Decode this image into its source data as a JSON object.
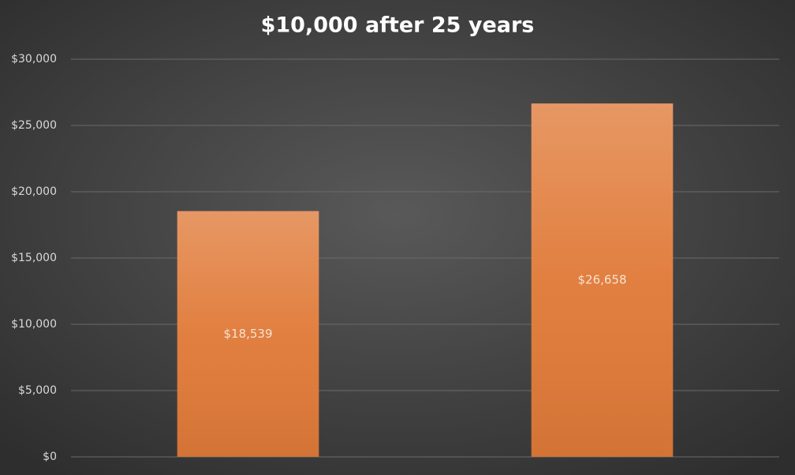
{
  "chart_data": {
    "type": "bar",
    "title": "$10,000 after 25 years",
    "categories": [
      null,
      null
    ],
    "values": [
      18539,
      26658
    ],
    "value_labels": [
      "$18,539",
      "$26,658"
    ],
    "color": "#e07a38",
    "ylim": [
      0,
      30000
    ],
    "yticks": [
      {
        "value": 0,
        "label": "$0"
      },
      {
        "value": 5000,
        "label": "$5,000"
      },
      {
        "value": 10000,
        "label": "$10,000"
      },
      {
        "value": 15000,
        "label": "$15,000"
      },
      {
        "value": 20000,
        "label": "$20,000"
      },
      {
        "value": 25000,
        "label": "$25,000"
      },
      {
        "value": 30000,
        "label": "$30,000"
      }
    ],
    "grid": true
  }
}
